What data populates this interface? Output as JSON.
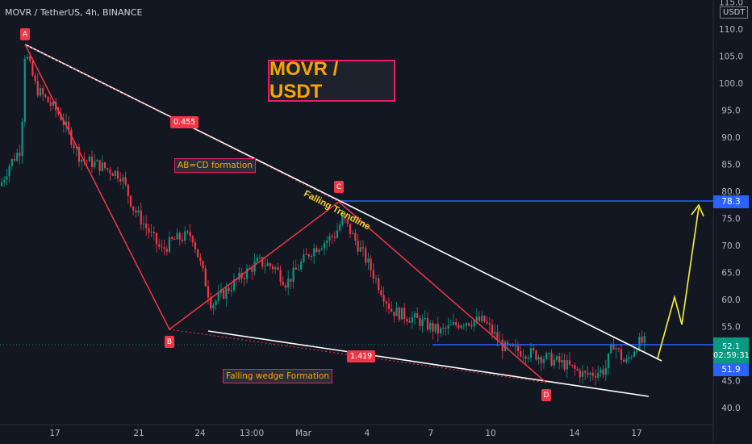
{
  "header": {
    "symbol_line": "MOVR / TetherUS, 4h, BINANCE"
  },
  "overlay": {
    "title": "MOVR / USDT",
    "abcd_note": "AB=CD formation",
    "wedge_note": "Falling wedge Formation",
    "trendline_label": "Falling Trendline",
    "fib_upper": "0.455",
    "fib_lower": "1.419",
    "point_a": "A",
    "point_b": "B",
    "point_c": "C",
    "point_d": "D"
  },
  "axis": {
    "currency": "USDT",
    "target_price": "78.3",
    "current_price": "52.1",
    "countdown": "02:59:31",
    "support_price": "51.9"
  },
  "colors": {
    "bull": "#089981",
    "bear": "#f23645",
    "pattern": "#f23645",
    "wedge": "#ffffff",
    "level": "#2962ff",
    "projection": "#f7f339",
    "accent": "#f7a600"
  },
  "chart_data": {
    "type": "candlestick",
    "y_ticks": [
      40.0,
      45.0,
      50.0,
      55.0,
      60.0,
      65.0,
      70.0,
      75.0,
      80.0,
      85.0,
      90.0,
      95.0,
      100.0,
      105.0,
      110.0,
      115.0
    ],
    "x_ticks": [
      "17",
      "21",
      "24",
      "13:00",
      "Mar",
      "4",
      "7",
      "10",
      "14",
      "17"
    ],
    "ylim": [
      40,
      116
    ],
    "pattern_points": [
      {
        "label": "A",
        "price": 107.5
      },
      {
        "label": "B",
        "price": 55
      },
      {
        "label": "C",
        "price": 77.5
      },
      {
        "label": "D",
        "price": 45.5
      }
    ],
    "levels": [
      {
        "price": 78.3
      },
      {
        "price": 51.9
      }
    ],
    "last_price": 52.1
  }
}
